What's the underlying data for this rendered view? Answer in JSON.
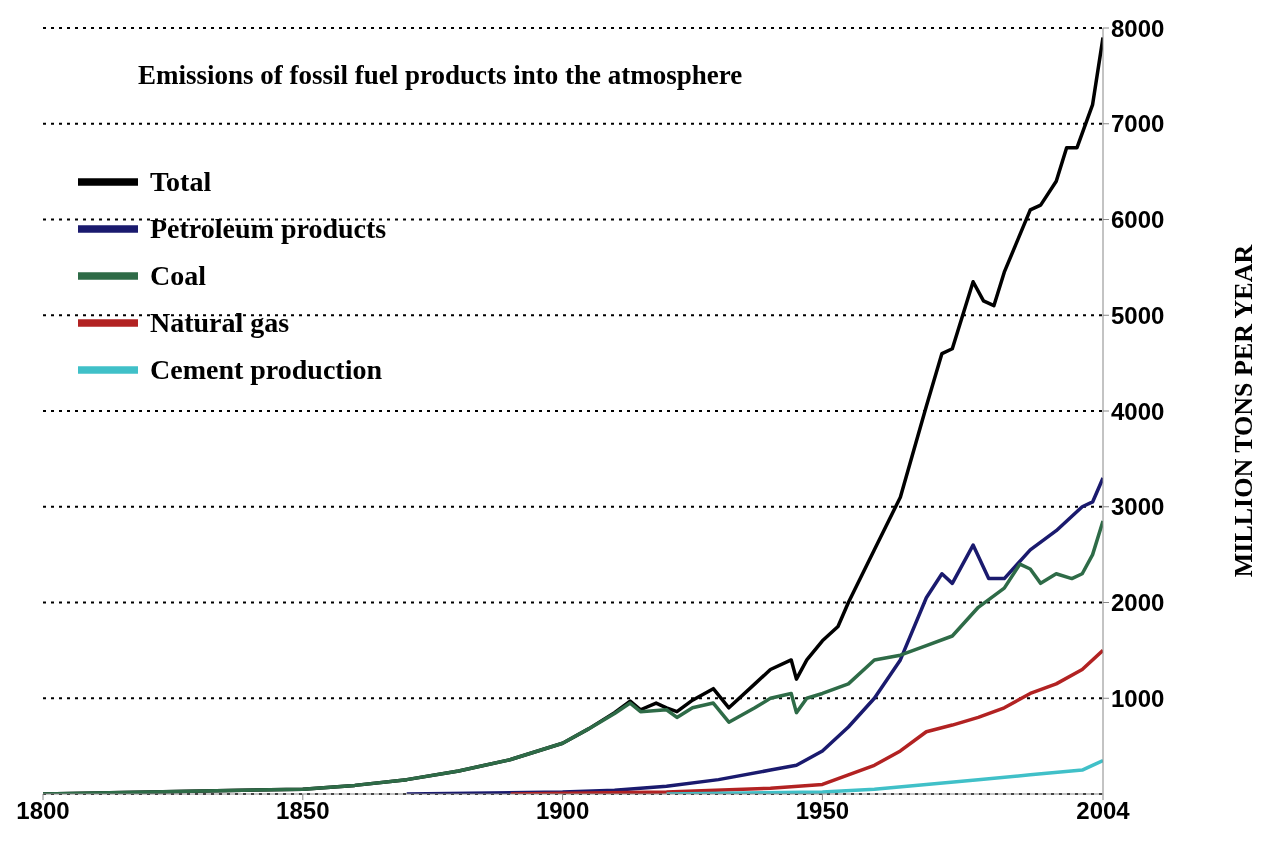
{
  "chart_data": {
    "type": "line",
    "title": "Emissions of fossil fuel products into the atmosphere",
    "ylabel": "MILLION TONS PER YEAR",
    "xlim": [
      1800,
      2004
    ],
    "xticks": [
      1800,
      1850,
      1900,
      1950,
      2004
    ],
    "ylim": [
      0,
      8000
    ],
    "yticks": [
      1000,
      2000,
      3000,
      4000,
      5000,
      6000,
      7000,
      8000
    ],
    "grid": "y",
    "legend": "top left",
    "line_style": "solid",
    "marker": "none",
    "series": [
      {
        "name": "Total",
        "color": "#000000",
        "x": [
          1800,
          1850,
          1860,
          1870,
          1880,
          1890,
          1900,
          1905,
          1910,
          1913,
          1915,
          1918,
          1920,
          1922,
          1925,
          1929,
          1932,
          1937,
          1940,
          1944,
          1945,
          1947,
          1950,
          1953,
          1955,
          1960,
          1965,
          1970,
          1973,
          1975,
          1979,
          1981,
          1983,
          1985,
          1990,
          1992,
          1995,
          1997,
          1999,
          2002,
          2004
        ],
        "values": [
          0,
          50,
          90,
          150,
          240,
          360,
          530,
          680,
          850,
          970,
          880,
          950,
          900,
          860,
          980,
          1100,
          900,
          1150,
          1300,
          1400,
          1200,
          1400,
          1600,
          1750,
          2000,
          2550,
          3100,
          4050,
          4600,
          4650,
          5350,
          5150,
          5100,
          5450,
          6100,
          6150,
          6400,
          6750,
          6750,
          7200,
          7900
        ]
      },
      {
        "name": "Petroleum products",
        "color": "#1a1a6e",
        "x": [
          1870,
          1900,
          1910,
          1920,
          1930,
          1940,
          1945,
          1950,
          1955,
          1960,
          1965,
          1970,
          1973,
          1975,
          1979,
          1982,
          1985,
          1990,
          1995,
          2000,
          2002,
          2004
        ],
        "values": [
          0,
          20,
          40,
          80,
          150,
          250,
          300,
          450,
          700,
          1000,
          1400,
          2050,
          2300,
          2200,
          2600,
          2250,
          2250,
          2550,
          2750,
          3000,
          3050,
          3300
        ]
      },
      {
        "name": "Coal",
        "color": "#2e6b47",
        "x": [
          1800,
          1850,
          1860,
          1870,
          1880,
          1890,
          1900,
          1905,
          1910,
          1913,
          1915,
          1920,
          1922,
          1925,
          1929,
          1932,
          1937,
          1940,
          1944,
          1945,
          1947,
          1950,
          1955,
          1960,
          1965,
          1970,
          1975,
          1980,
          1985,
          1988,
          1990,
          1992,
          1995,
          1998,
          2000,
          2002,
          2004
        ],
        "values": [
          0,
          50,
          90,
          150,
          240,
          360,
          530,
          680,
          840,
          950,
          860,
          880,
          800,
          900,
          950,
          750,
          900,
          1000,
          1050,
          850,
          1000,
          1050,
          1150,
          1400,
          1450,
          1550,
          1650,
          1950,
          2150,
          2400,
          2350,
          2200,
          2300,
          2250,
          2300,
          2500,
          2850
        ]
      },
      {
        "name": "Natural gas",
        "color": "#b22222",
        "x": [
          1890,
          1920,
          1940,
          1950,
          1955,
          1960,
          1965,
          1970,
          1975,
          1980,
          1985,
          1990,
          1995,
          2000,
          2004
        ],
        "values": [
          0,
          20,
          60,
          100,
          200,
          300,
          450,
          650,
          720,
          800,
          900,
          1050,
          1150,
          1300,
          1500
        ]
      },
      {
        "name": "Cement production",
        "color": "#40c0c8",
        "x": [
          1920,
          1950,
          1960,
          1970,
          1980,
          1990,
          2000,
          2004
        ],
        "values": [
          0,
          20,
          50,
          100,
          150,
          200,
          250,
          350
        ]
      }
    ]
  }
}
